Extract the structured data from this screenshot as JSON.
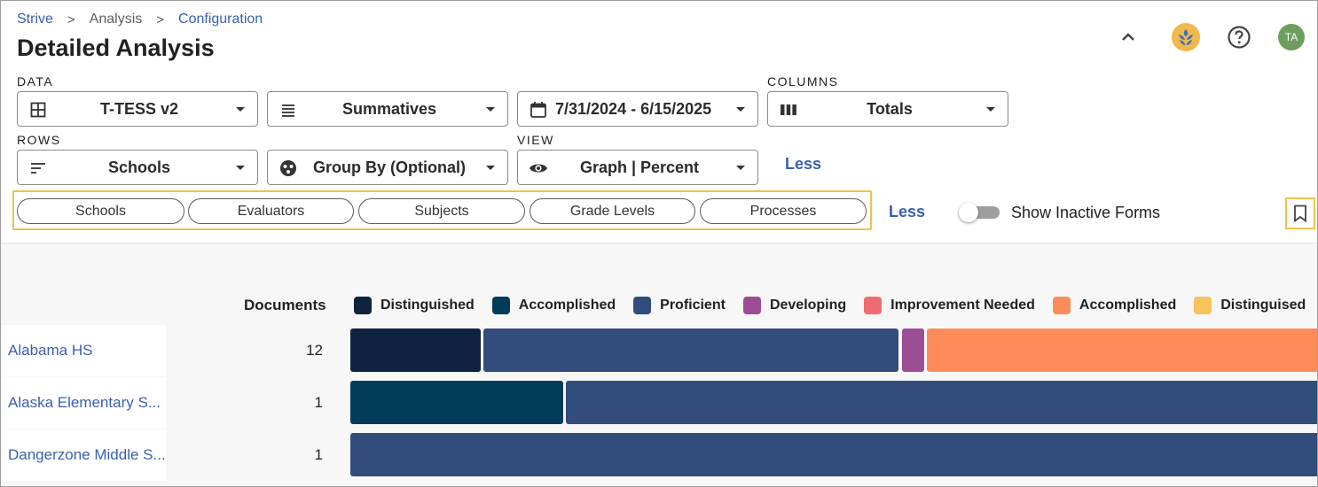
{
  "breadcrumb": [
    {
      "label": "Strive",
      "link": true
    },
    {
      "label": "Analysis",
      "link": false
    },
    {
      "label": "Configuration",
      "link": true
    }
  ],
  "page_title": "Detailed Analysis",
  "header": {
    "avatar_initials": "TA",
    "icons": [
      "chevron-up-icon",
      "app-logo-icon",
      "help-icon"
    ]
  },
  "sections": {
    "data": "DATA",
    "columns": "COLUMNS",
    "rows": "ROWS",
    "view": "VIEW"
  },
  "selects": {
    "form": {
      "value": "T-TESS v2",
      "icon": "grid-icon"
    },
    "summatives": {
      "value": "Summatives",
      "icon": "list-icon"
    },
    "date_range": {
      "value": "7/31/2024 - 6/15/2025",
      "icon": "calendar-icon"
    },
    "columns": {
      "value": "Totals",
      "icon": "columns-icon"
    },
    "rows": {
      "value": "Schools",
      "icon": "sort-icon"
    },
    "group_by": {
      "value": "Group By (Optional)",
      "icon": "group-icon"
    },
    "view": {
      "value": "Graph | Percent",
      "icon": "eye-icon"
    }
  },
  "less_links": {
    "top": "Less",
    "filters": "Less"
  },
  "filters": [
    "Schools",
    "Evaluators",
    "Subjects",
    "Grade Levels",
    "Processes"
  ],
  "toggle": {
    "label": "Show Inactive Forms",
    "on": false
  },
  "chart_data": {
    "type": "bar",
    "orientation": "horizontal-stacked",
    "count_header": "Documents",
    "legend": [
      {
        "name": "Distinguished",
        "color": "#0d2340"
      },
      {
        "name": "Accomplished",
        "color": "#033c5a"
      },
      {
        "name": "Proficient",
        "color": "#324c7c"
      },
      {
        "name": "Developing",
        "color": "#9b4d96"
      },
      {
        "name": "Improvement Needed",
        "color": "#ef6b72"
      },
      {
        "name": "Accomplished",
        "color": "#fe8c5a"
      },
      {
        "name": "Distinguised",
        "color": "#f6c35c"
      }
    ],
    "rows": [
      {
        "name": "Alabama HS",
        "documents": "12",
        "segments": [
          {
            "series": 0,
            "percent": 13.3
          },
          {
            "series": 2,
            "percent": 41.7
          },
          {
            "series": 3,
            "percent": 2.5
          },
          {
            "series": 5,
            "percent": 42.5
          }
        ]
      },
      {
        "name": "Alaska Elementary S...",
        "documents": "1",
        "segments": [
          {
            "series": 1,
            "percent": 21.5
          },
          {
            "series": 2,
            "percent": 76.0
          },
          {
            "series": 5,
            "percent": 2.5
          }
        ]
      },
      {
        "name": "Dangerzone Middle S...",
        "documents": "1",
        "segments": [
          {
            "series": 2,
            "percent": 100
          }
        ]
      }
    ]
  }
}
